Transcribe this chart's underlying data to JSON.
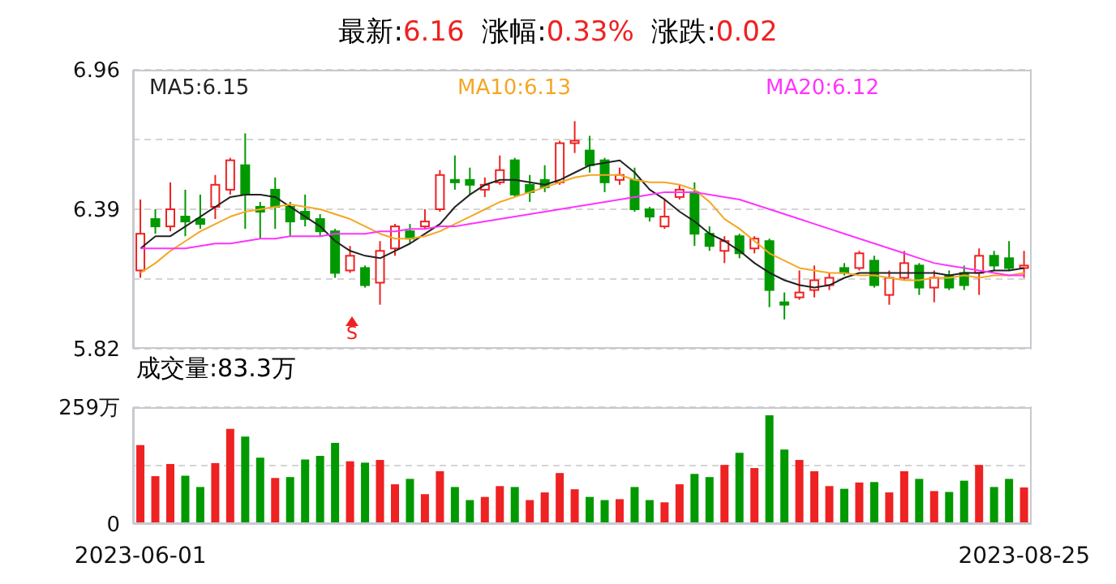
{
  "chart_data": [
    {
      "type": "candlestick",
      "title": "最新:6.16 涨幅:0.33% 涨跌:0.02",
      "categories": [
        null,
        null,
        null,
        null,
        null,
        null,
        null,
        null,
        null,
        null,
        null,
        null,
        null,
        null,
        null,
        null,
        null,
        null,
        null,
        null,
        null,
        null,
        null,
        null,
        null,
        null,
        null,
        null,
        null,
        null,
        null,
        null,
        null,
        null,
        null,
        null,
        null,
        null,
        null,
        null,
        null,
        null,
        null,
        null,
        null,
        null,
        null,
        null,
        null,
        null,
        null,
        null,
        null,
        null,
        null,
        null,
        null,
        null,
        null,
        null
      ],
      "ohlc": [
        [
          6.14,
          6.43,
          6.11,
          6.29
        ],
        [
          6.35,
          6.39,
          6.29,
          6.32
        ],
        [
          6.32,
          6.5,
          6.3,
          6.39
        ],
        [
          6.36,
          6.47,
          6.28,
          6.34
        ],
        [
          6.35,
          6.45,
          6.31,
          6.33
        ],
        [
          6.4,
          6.53,
          6.35,
          6.49
        ],
        [
          6.47,
          6.6,
          6.45,
          6.59
        ],
        [
          6.57,
          6.7,
          6.31,
          6.45
        ],
        [
          6.4,
          6.42,
          6.27,
          6.38
        ],
        [
          6.47,
          6.52,
          6.31,
          6.4
        ],
        [
          6.4,
          6.42,
          6.28,
          6.34
        ],
        [
          6.38,
          6.45,
          6.32,
          6.35
        ],
        [
          6.35,
          6.37,
          6.28,
          6.3
        ],
        [
          6.3,
          6.31,
          6.11,
          6.13
        ],
        [
          6.14,
          6.24,
          6.13,
          6.2
        ],
        [
          6.15,
          6.16,
          6.07,
          6.08
        ],
        [
          6.09,
          6.26,
          6.0,
          6.22
        ],
        [
          6.23,
          6.33,
          6.2,
          6.32
        ],
        [
          6.3,
          6.33,
          6.25,
          6.27
        ],
        [
          6.32,
          6.39,
          6.31,
          6.34
        ],
        [
          6.39,
          6.55,
          6.38,
          6.53
        ],
        [
          6.51,
          6.61,
          6.47,
          6.5
        ],
        [
          6.51,
          6.56,
          6.45,
          6.49
        ],
        [
          6.47,
          6.52,
          6.44,
          6.49
        ],
        [
          6.5,
          6.61,
          6.49,
          6.55
        ],
        [
          6.59,
          6.6,
          6.44,
          6.45
        ],
        [
          6.49,
          6.53,
          6.42,
          6.46
        ],
        [
          6.51,
          6.57,
          6.46,
          6.48
        ],
        [
          6.5,
          6.67,
          6.49,
          6.66
        ],
        [
          6.66,
          6.75,
          6.62,
          6.67
        ],
        [
          6.63,
          6.69,
          6.54,
          6.57
        ],
        [
          6.59,
          6.6,
          6.46,
          6.5
        ],
        [
          6.51,
          6.56,
          6.49,
          6.53
        ],
        [
          6.51,
          6.56,
          6.38,
          6.39
        ],
        [
          6.39,
          6.4,
          6.34,
          6.36
        ],
        [
          6.32,
          6.43,
          6.31,
          6.36
        ],
        [
          6.44,
          6.49,
          6.43,
          6.47
        ],
        [
          6.46,
          6.5,
          6.24,
          6.29
        ],
        [
          6.29,
          6.32,
          6.22,
          6.24
        ],
        [
          6.22,
          6.28,
          6.17,
          6.26
        ],
        [
          6.28,
          6.29,
          6.19,
          6.21
        ],
        [
          6.23,
          6.28,
          6.21,
          6.27
        ],
        [
          6.26,
          6.27,
          5.99,
          6.06
        ],
        [
          6.01,
          6.05,
          5.94,
          6.0
        ],
        [
          6.03,
          6.14,
          6.02,
          6.05
        ],
        [
          6.06,
          6.16,
          6.03,
          6.1
        ],
        [
          6.08,
          6.13,
          6.06,
          6.11
        ],
        [
          6.15,
          6.17,
          6.12,
          6.13
        ],
        [
          6.15,
          6.22,
          6.14,
          6.21
        ],
        [
          6.18,
          6.2,
          6.07,
          6.08
        ],
        [
          6.04,
          6.14,
          6.0,
          6.11
        ],
        [
          6.11,
          6.22,
          6.1,
          6.17
        ],
        [
          6.16,
          6.17,
          6.04,
          6.07
        ],
        [
          6.07,
          6.14,
          6.01,
          6.11
        ],
        [
          6.12,
          6.14,
          6.06,
          6.07
        ],
        [
          6.13,
          6.16,
          6.06,
          6.08
        ],
        [
          6.13,
          6.23,
          6.04,
          6.2
        ],
        [
          6.2,
          6.22,
          6.14,
          6.16
        ],
        [
          6.19,
          6.26,
          6.14,
          6.15
        ],
        [
          6.15,
          6.22,
          6.11,
          6.16
        ]
      ],
      "series": [
        {
          "type": "line",
          "name": "MA5:6.15",
          "color": "#222222",
          "values": [
            6.23,
            6.28,
            6.28,
            6.32,
            6.36,
            6.4,
            6.44,
            6.45,
            6.45,
            6.44,
            6.4,
            6.36,
            6.32,
            6.26,
            6.22,
            6.2,
            6.19,
            6.22,
            6.25,
            6.29,
            6.33,
            6.4,
            6.45,
            6.49,
            6.51,
            6.51,
            6.5,
            6.49,
            6.51,
            6.54,
            6.57,
            6.58,
            6.59,
            6.54,
            6.47,
            6.43,
            6.38,
            6.34,
            6.29,
            6.26,
            6.22,
            6.17,
            6.13,
            6.1,
            6.08,
            6.07,
            6.08,
            6.11,
            6.13,
            6.13,
            6.13,
            6.13,
            6.13,
            6.13,
            6.12,
            6.13,
            6.13,
            6.14,
            6.14,
            6.15
          ]
        },
        {
          "type": "line",
          "name": "MA10:6.13",
          "color": "#f5a623",
          "values": [
            6.13,
            6.17,
            6.22,
            6.26,
            6.3,
            6.33,
            6.36,
            6.38,
            6.39,
            6.4,
            6.41,
            6.4,
            6.39,
            6.37,
            6.35,
            6.32,
            6.29,
            6.27,
            6.27,
            6.28,
            6.3,
            6.33,
            6.36,
            6.39,
            6.42,
            6.44,
            6.46,
            6.48,
            6.5,
            6.52,
            6.53,
            6.53,
            6.53,
            6.51,
            6.5,
            6.5,
            6.49,
            6.47,
            6.42,
            6.35,
            6.31,
            6.26,
            6.21,
            6.18,
            6.15,
            6.14,
            6.13,
            6.13,
            6.12,
            6.12,
            6.11,
            6.1,
            6.1,
            6.11,
            6.11,
            6.12,
            6.11,
            6.12,
            6.12,
            6.13
          ]
        },
        {
          "type": "line",
          "name": "MA20:6.12",
          "color": "#ff33ff",
          "values": [
            6.23,
            6.23,
            6.23,
            6.23,
            6.24,
            6.25,
            6.25,
            6.26,
            6.27,
            6.27,
            6.28,
            6.28,
            6.28,
            6.29,
            6.29,
            6.29,
            6.3,
            6.3,
            6.31,
            6.31,
            6.32,
            6.32,
            6.33,
            6.34,
            6.35,
            6.36,
            6.37,
            6.38,
            6.39,
            6.4,
            6.41,
            6.42,
            6.43,
            6.44,
            6.45,
            6.46,
            6.46,
            6.46,
            6.45,
            6.44,
            6.43,
            6.41,
            6.39,
            6.37,
            6.35,
            6.33,
            6.31,
            6.29,
            6.27,
            6.25,
            6.23,
            6.21,
            6.19,
            6.17,
            6.16,
            6.15,
            6.14,
            6.13,
            6.12,
            6.12
          ]
        }
      ],
      "ylim": [
        5.82,
        6.96
      ],
      "yticks": [
        5.82,
        {
          "value": 6.105,
          "label": null
        },
        6.39,
        {
          "value": 6.675,
          "label": null
        },
        6.96
      ],
      "grid": "y",
      "legend": "top",
      "marker": "none",
      "annotations": [
        "S"
      ]
    },
    {
      "type": "bar",
      "title": "成交量:83.3万",
      "categories": [
        "2023-06-01",
        null,
        null,
        null,
        null,
        null,
        null,
        null,
        null,
        null,
        null,
        null,
        null,
        null,
        null,
        null,
        null,
        null,
        null,
        null,
        null,
        null,
        null,
        null,
        null,
        null,
        null,
        null,
        null,
        null,
        null,
        null,
        null,
        null,
        null,
        null,
        null,
        null,
        null,
        null,
        null,
        null,
        null,
        null,
        null,
        null,
        null,
        null,
        null,
        null,
        null,
        null,
        null,
        null,
        null,
        null,
        null,
        null,
        null,
        "2023-08-25"
      ],
      "values": [
        175,
        106,
        133,
        107,
        82,
        135,
        211,
        194,
        147,
        102,
        104,
        143,
        151,
        180,
        139,
        136,
        142,
        88,
        100,
        66,
        117,
        82,
        53,
        60,
        84,
        82,
        53,
        70,
        113,
        77,
        60,
        53,
        55,
        82,
        53,
        48,
        88,
        111,
        104,
        131,
        158,
        124,
        241,
        165,
        142,
        117,
        84,
        78,
        92,
        93,
        70,
        117,
        100,
        73,
        71,
        96,
        131,
        82,
        100,
        81
      ],
      "colors": [
        "#ee2222",
        "#ee2222",
        "#ee2222",
        "#009900",
        "#009900",
        "#ee2222",
        "#ee2222",
        "#009900",
        "#009900",
        "#ee2222",
        "#009900",
        "#009900",
        "#009900",
        "#009900",
        "#ee2222",
        "#009900",
        "#ee2222",
        "#ee2222",
        "#009900",
        "#ee2222",
        "#ee2222",
        "#009900",
        "#009900",
        "#ee2222",
        "#ee2222",
        "#009900",
        "#ee2222",
        "#ee2222",
        "#ee2222",
        "#ee2222",
        "#009900",
        "#009900",
        "#ee2222",
        "#009900",
        "#009900",
        "#ee2222",
        "#ee2222",
        "#009900",
        "#009900",
        "#ee2222",
        "#009900",
        "#ee2222",
        "#009900",
        "#009900",
        "#ee2222",
        "#ee2222",
        "#ee2222",
        "#009900",
        "#ee2222",
        "#009900",
        "#ee2222",
        "#ee2222",
        "#009900",
        "#ee2222",
        "#009900",
        "#009900",
        "#ee2222",
        "#009900",
        "#009900",
        "#ee2222"
      ],
      "ylim": [
        0,
        259
      ],
      "yticks": [
        0,
        {
          "value": 129.5,
          "label": null
        },
        {
          "value": 259,
          "label": "259万"
        }
      ],
      "grid": "y"
    }
  ]
}
